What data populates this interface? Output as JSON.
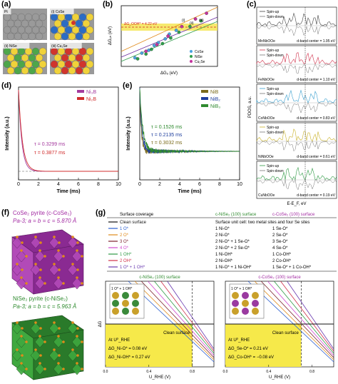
{
  "panel_a": {
    "label": "(a)",
    "tiles": [
      {
        "name": "Pt",
        "bg": "#b9b9b9",
        "ball": "#9a9a9a"
      },
      {
        "name": "(i) CoSe",
        "bg": "#2b6cc4",
        "ball": "#f0d23a"
      },
      {
        "name": "(ii) NiSe",
        "bg": "#4ea64a",
        "ball": "#f0d23a"
      },
      {
        "name": "(iii) Cu₂Se",
        "bg": "#d0352d",
        "ball": "#f0d23a"
      }
    ]
  },
  "panel_b": {
    "label": "(b)",
    "xlabel": "ΔGₒ (eV)",
    "ylabel": "ΔGₒₕ (eV)",
    "band_label": "ΔG_OOH* = 4.22 eV",
    "numerals": [
      "(i)",
      "(ii)",
      "(iii)"
    ],
    "legend": [
      "CoSe",
      "NiSe",
      "Cu₂Se"
    ],
    "colors": {
      "CoSe": "#4aa3e0",
      "NiSe": "#2e9e4a",
      "Cu2Se": "#c3339d"
    },
    "chart_data": {
      "type": "scatter",
      "series": [
        {
          "name": "CoSe",
          "x": [
            0.5,
            0.75,
            1.0,
            1.2,
            1.35,
            1.6,
            1.75,
            2.0
          ],
          "y": [
            2.25,
            2.5,
            2.65,
            2.9,
            3.05,
            3.25,
            3.5,
            3.7
          ]
        },
        {
          "name": "NiSe",
          "x": [
            0.6,
            0.9,
            1.1,
            1.5,
            1.8,
            2.1,
            2.5,
            2.9
          ],
          "y": [
            2.2,
            2.45,
            2.7,
            3.0,
            3.3,
            3.6,
            3.9,
            4.2
          ]
        },
        {
          "name": "Cu2Se",
          "x": [
            0.9,
            1.3,
            1.7,
            2.2,
            2.7,
            3.1
          ],
          "y": [
            2.6,
            2.95,
            3.4,
            3.9,
            4.3,
            4.6
          ]
        }
      ]
    }
  },
  "panel_c": {
    "label": "(c)",
    "ylabel": "PDOS, a.u.",
    "xlabel": "E-E_F, eV",
    "spin_up": "Spin-up",
    "spin_down": "Spin-down",
    "rows": [
      {
        "name": "MnNbOOe",
        "center": "d-band center = 1.95 eV",
        "color": "#444444"
      },
      {
        "name": "FeNbOOe",
        "center": "d-band center = 1.10 eV",
        "color": "#d0304a"
      },
      {
        "name": "CoNbOOe",
        "center": "d-band center = 0.83 eV",
        "color": "#3ba0d0"
      },
      {
        "name": "NiNbOOe",
        "center": "d-band center = 0.61 eV",
        "color": "#c9b22a"
      },
      {
        "name": "CuNbOOe",
        "center": "d-band center = 0.19 eV",
        "color": "#2f9a45"
      }
    ]
  },
  "panel_d": {
    "label": "(d)",
    "ylabel": "Intensity (a.u.)",
    "xlabel": "Time (ms)",
    "xticks": [
      "0",
      "2",
      "4",
      "6",
      "8",
      "10"
    ],
    "legend": [
      "Ni₃B",
      "Ni₂B"
    ],
    "tau1": "τ = 0.3299 ms",
    "tau2": "τ = 0.3877 ms",
    "chart_data": {
      "type": "line",
      "series": [
        {
          "name": "Ni3B",
          "tau_ms": 0.3299,
          "color": "#a43a9e"
        },
        {
          "name": "Ni2B",
          "tau_ms": 0.3877,
          "color": "#d02c2c"
        }
      ],
      "xlim": [
        0,
        10
      ]
    }
  },
  "panel_e": {
    "label": "(e)",
    "ylabel": "Intensity (a.u.)",
    "xlabel": "Time (ms)",
    "xticks": [
      "0",
      "2",
      "4",
      "6",
      "8",
      "10"
    ],
    "legend": [
      "NiB",
      "NiB₂",
      "NiB₃"
    ],
    "tau1": "τ = 0.1526 ms",
    "tau2": "τ = 0.2135 ms",
    "tau3": "τ = 0.3032 ms",
    "chart_data": {
      "type": "line",
      "series": [
        {
          "name": "NiB",
          "tau_ms": 0.1526,
          "color": "#7a6a1a"
        },
        {
          "name": "NiB2",
          "tau_ms": 0.2135,
          "color": "#1f3f9e"
        },
        {
          "name": "NiB3",
          "tau_ms": 0.3032,
          "color": "#2f8a2f"
        }
      ],
      "xlim": [
        0,
        10
      ]
    }
  },
  "panel_f": {
    "label": "(f)",
    "top_title": "CoSe₂ pyrite (c-CoSe₂)",
    "top_params": "Pa-3; a = b = c = 5.870 Å",
    "bottom_title": "NiSe₂ pyrite (c-NiSe₂)",
    "bottom_params": "Pa-3; a = b = c = 5.963 Å"
  },
  "panel_g": {
    "label": "(g)",
    "header": {
      "coverage": "Surface coverage",
      "nise": "c-NiSe₂ (100) surface",
      "cose": "c-CoSe₂ (100) surface"
    },
    "rows": [
      {
        "color": "#111111",
        "coverage": "Clean surface",
        "desc": "Surface unit cell: two metal sites and four Se sites"
      },
      {
        "color": "#2b5fd0",
        "coverage": "1 O*",
        "nise": "1 Ni-O*",
        "cose": "1 Se-O*"
      },
      {
        "color": "#e08a1a",
        "coverage": "2 O*",
        "nise": "2 Ni-O*",
        "cose": "2 Se-O*"
      },
      {
        "color": "#7a1f2a",
        "coverage": "3 O*",
        "nise": "2 Ni-O* + 1 Se-O*",
        "cose": "3 Se-O*"
      },
      {
        "color": "#d04ad0",
        "coverage": "4 O*",
        "nise": "2 Ni-O* + 2 Se-O*",
        "cose": "4 Se-O*"
      },
      {
        "color": "#2f9a45",
        "coverage": "1 OH*",
        "nise": "1 Ni-OH*",
        "cose": "1 Co-OH*"
      },
      {
        "color": "#d0304a",
        "coverage": "2 OH*",
        "nise": "2 Ni-OH*",
        "cose": "2 Co-OH*"
      },
      {
        "color": "#6a3ab0",
        "coverage": "1 O* + 1 OH*",
        "nise": "1 Ni-O* + 1 Ni-OH*",
        "cose": "1 Se-O* + 1 Co-OH*"
      }
    ],
    "left_plot": {
      "title": "c-NiSe₂ (100) surface",
      "inset": "1 O* + 1 OH*",
      "clean": "Clean surface",
      "at": "At Uᴾ_RHE",
      "v1": "ΔG_Ni-O* = 0.08 eV",
      "v2": "ΔG_Ni-OH* = 0.27 eV",
      "xticks": [
        "0.0",
        "0.4",
        "0.8"
      ],
      "xlabel": "U_RHE (V)",
      "ylabel": "ΔG",
      "dash_x": 0.8
    },
    "right_plot": {
      "title": "c-CoSe₂ (100) surface",
      "inset": "1 O* + 1 OH*",
      "clean": "Clean surface",
      "at": "At Uᴾ_RHE",
      "v1": "ΔG_Se-O* = 0.21 eV",
      "v2": "ΔG_Co-OH* = −0.08 eV",
      "xticks": [
        "0.0",
        "0.4",
        "0.8"
      ],
      "xlabel": "U_RHE (V)",
      "dash_x": 0.7
    }
  }
}
